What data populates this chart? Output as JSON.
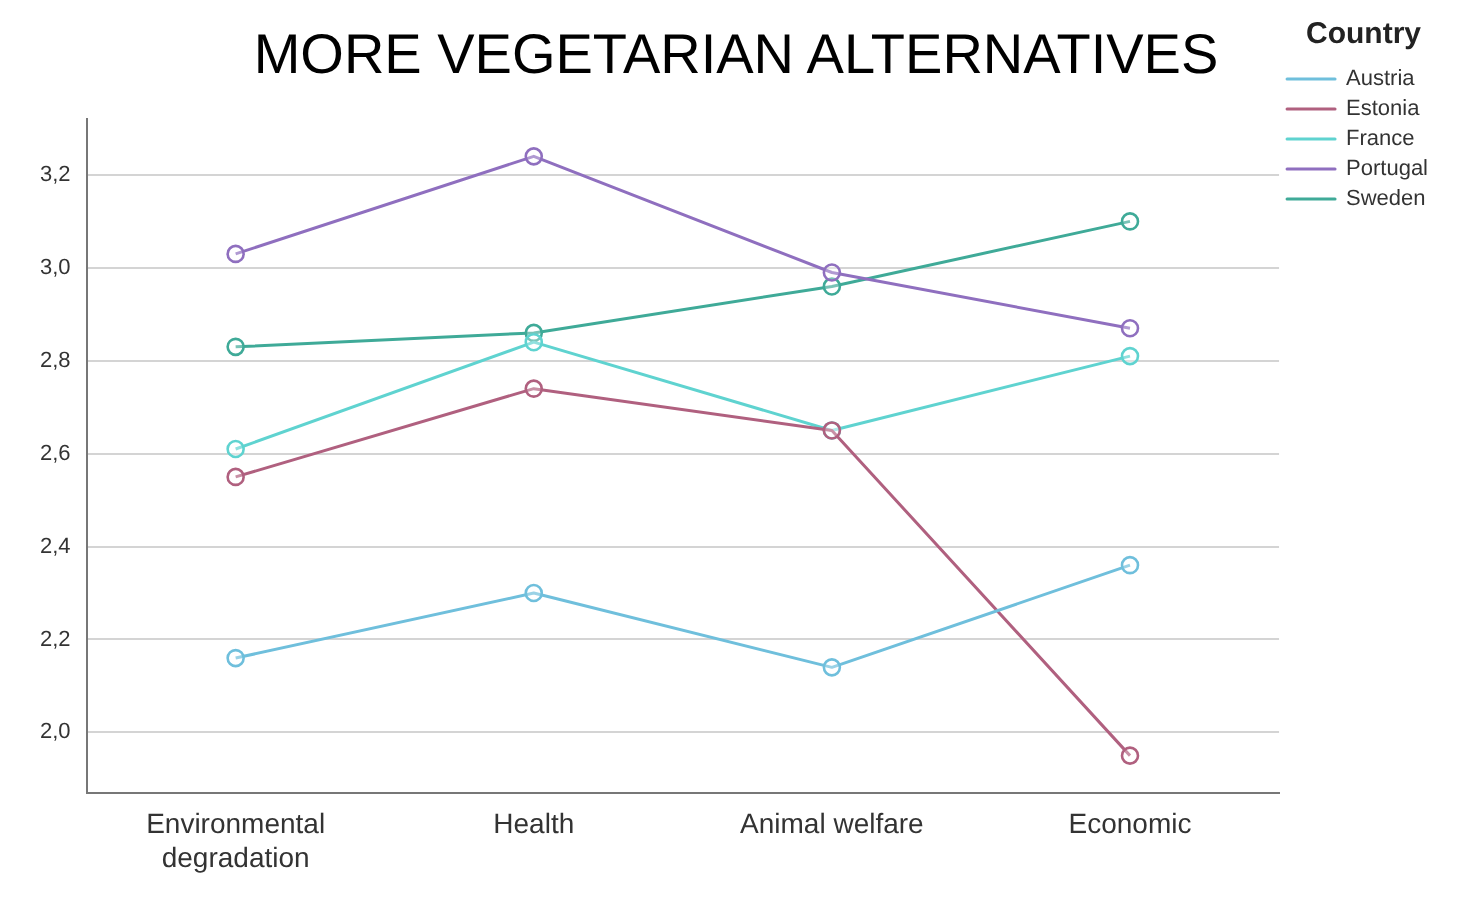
{
  "chart_data": {
    "type": "line",
    "title": "MORE VEGETARIAN ALTERNATIVES",
    "legend_title": "Country",
    "categories": [
      "Environmental degradation",
      "Health",
      "Animal welfare",
      "Economic"
    ],
    "series": [
      {
        "name": "Austria",
        "color": "#6fbfdc",
        "values": [
          2.16,
          2.3,
          2.14,
          2.36
        ]
      },
      {
        "name": "Estonia",
        "color": "#b0607f",
        "values": [
          2.55,
          2.74,
          2.65,
          1.95
        ]
      },
      {
        "name": "France",
        "color": "#5fd3d0",
        "values": [
          2.61,
          2.84,
          2.65,
          2.81
        ]
      },
      {
        "name": "Portugal",
        "color": "#8f6fbf",
        "values": [
          3.03,
          3.24,
          2.99,
          2.87
        ]
      },
      {
        "name": "Sweden",
        "color": "#3faa98",
        "values": [
          2.83,
          2.86,
          2.96,
          3.1
        ]
      }
    ],
    "ylim": [
      1.87,
      3.32
    ],
    "yticks": [
      {
        "value": 2.0,
        "label": "2,0"
      },
      {
        "value": 2.2,
        "label": "2,2"
      },
      {
        "value": 2.4,
        "label": "2,4"
      },
      {
        "value": 2.6,
        "label": "2,6"
      },
      {
        "value": 2.8,
        "label": "2,8"
      },
      {
        "value": 3.0,
        "label": "3,0"
      },
      {
        "value": 3.2,
        "label": "3,2"
      }
    ],
    "grid": "y",
    "legend": "top right",
    "marker": "circle",
    "line_style": "solid"
  }
}
